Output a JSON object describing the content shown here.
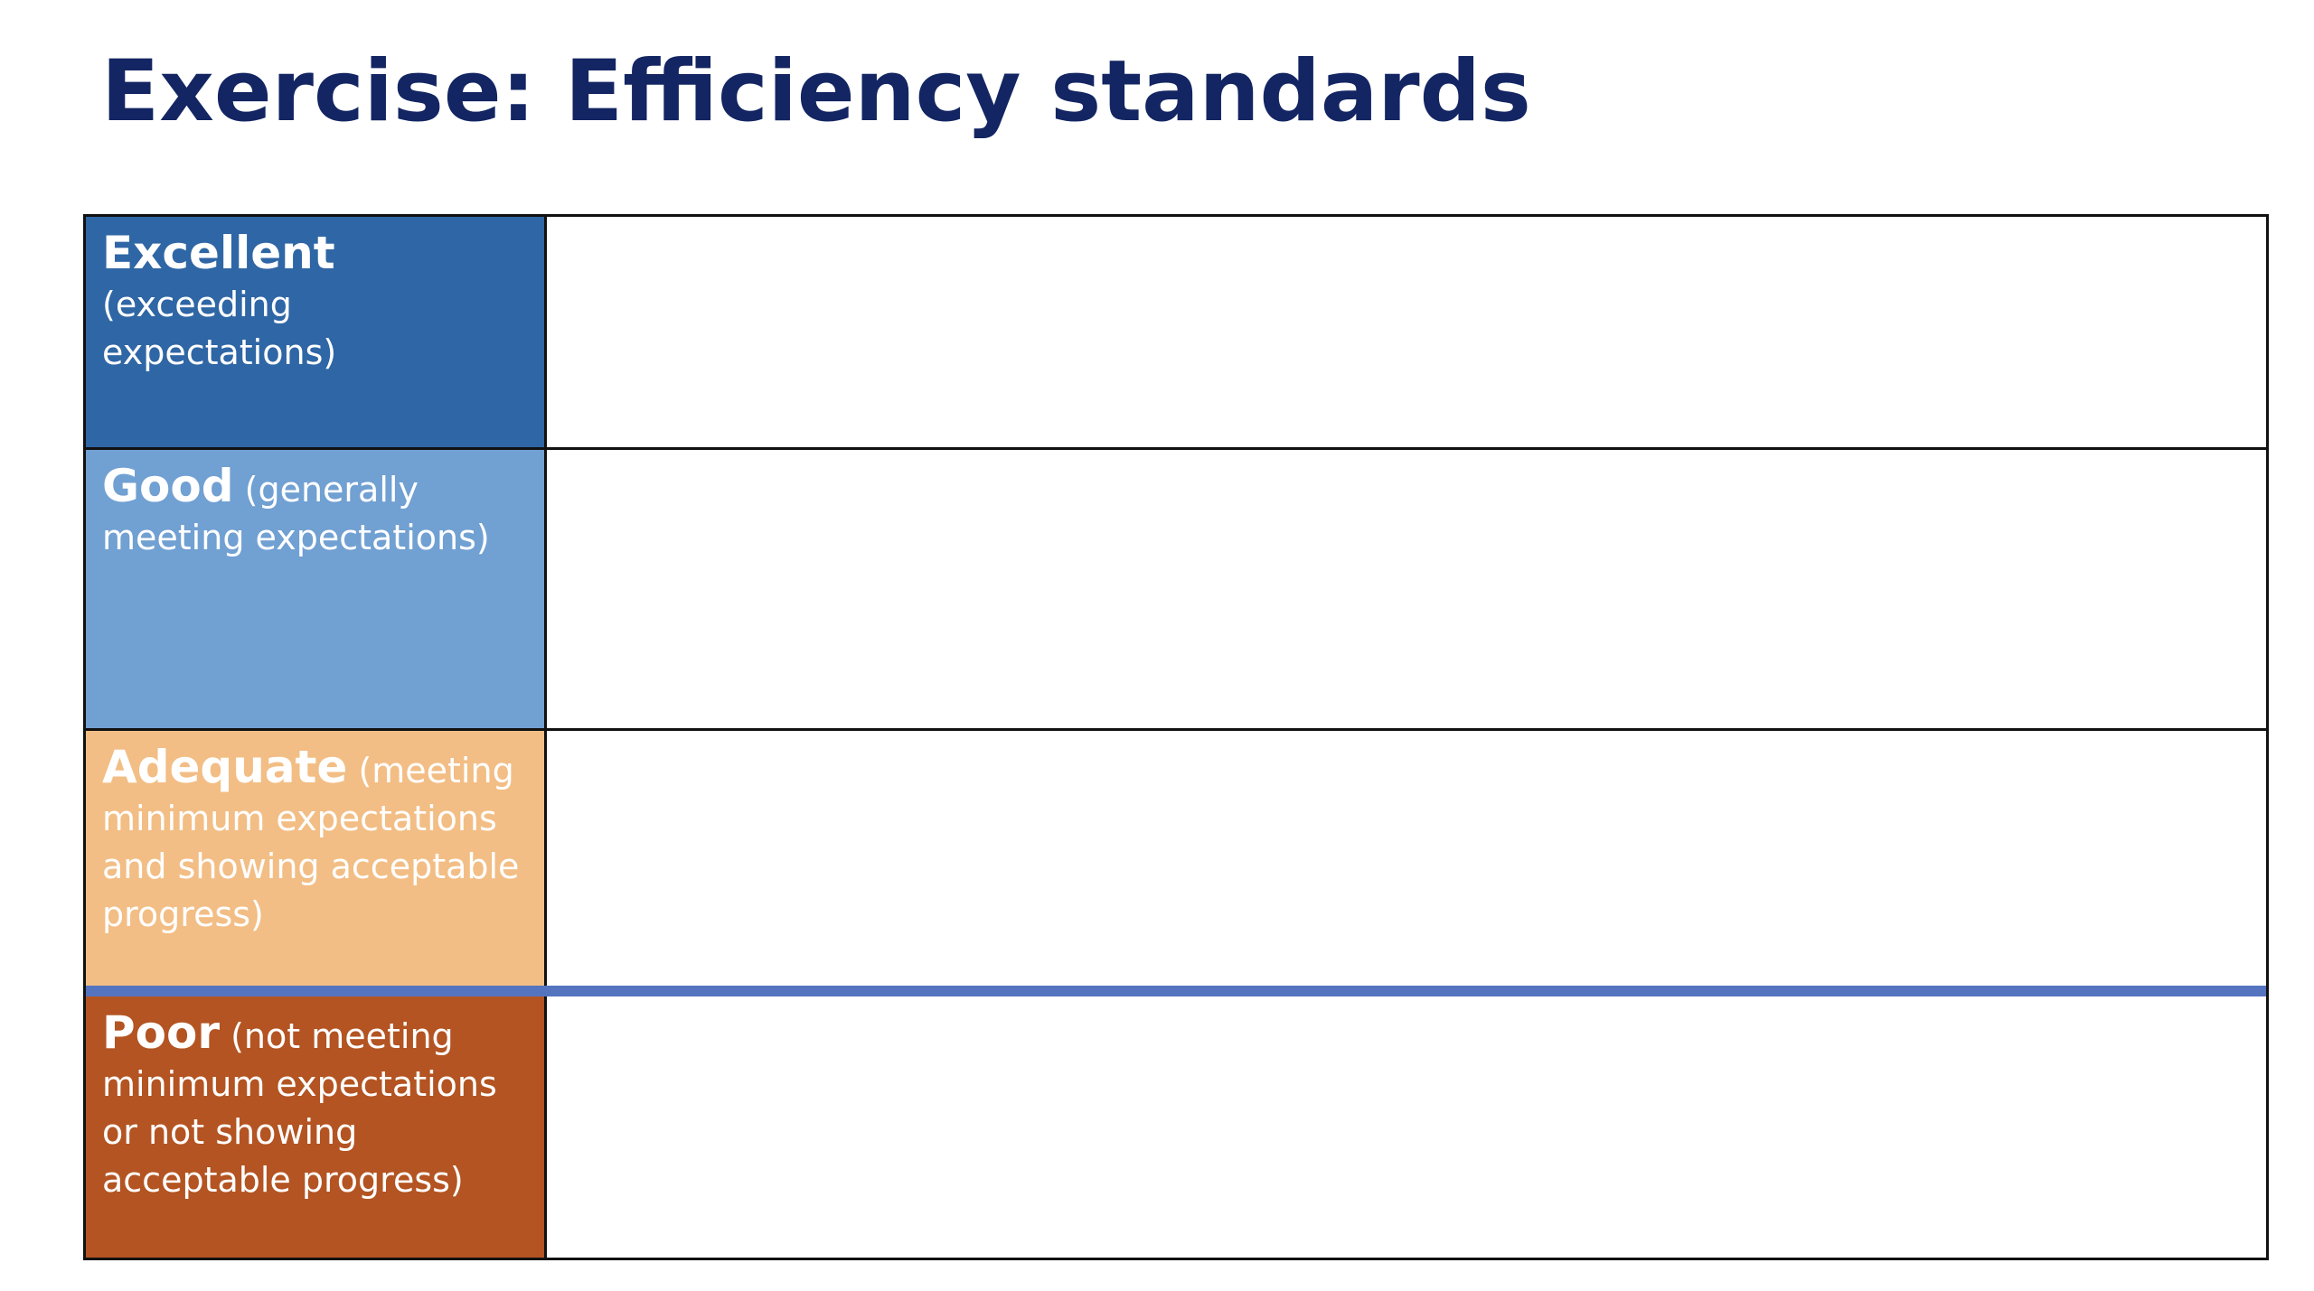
{
  "title": "Exercise: Efficiency standards",
  "colors": {
    "title": "#132562",
    "excellent": "#2F66A5",
    "good": "#71A0D2",
    "adequate": "#F2BE85",
    "poor": "#B35422",
    "threshold_line": "#5474C0"
  },
  "rows": [
    {
      "level": "Excellent",
      "description": "(exceeding expectations)",
      "content": ""
    },
    {
      "level": "Good",
      "description": "(generally meeting expectations)",
      "content": ""
    },
    {
      "level": "Adequate",
      "description": "(meeting minimum expectations and showing acceptable progress)",
      "content": ""
    },
    {
      "level": "Poor",
      "description": "(not meeting minimum expectations or not showing acceptable progress)",
      "content": ""
    }
  ]
}
